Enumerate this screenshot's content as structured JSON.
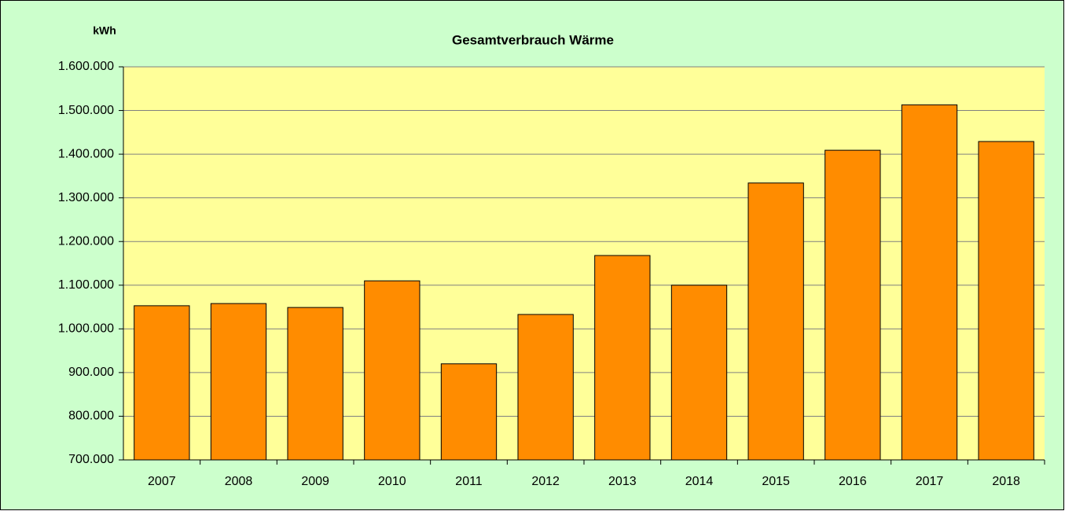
{
  "chart_data": {
    "type": "bar",
    "title": "Gesamtverbrauch Wärme",
    "y_axis_label": "kWh",
    "categories": [
      "2007",
      "2008",
      "2009",
      "2010",
      "2011",
      "2012",
      "2013",
      "2014",
      "2015",
      "2016",
      "2017",
      "2018"
    ],
    "values": [
      1053000,
      1058000,
      1049000,
      1110000,
      920000,
      1033000,
      1168000,
      1100000,
      1334000,
      1409000,
      1513000,
      1429000
    ],
    "color": "#ff8c00",
    "ylim": [
      700000,
      1600000
    ],
    "yticks": [
      {
        "value": 700000,
        "label": "700.000"
      },
      {
        "value": 800000,
        "label": "800.000"
      },
      {
        "value": 900000,
        "label": "900.000"
      },
      {
        "value": 1000000,
        "label": "1.000.000"
      },
      {
        "value": 1100000,
        "label": "1.100.000"
      },
      {
        "value": 1200000,
        "label": "1.200.000"
      },
      {
        "value": 1300000,
        "label": "1.300.000"
      },
      {
        "value": 1400000,
        "label": "1.400.000"
      },
      {
        "value": 1500000,
        "label": "1.500.000"
      },
      {
        "value": 1600000,
        "label": "1.600.000"
      }
    ],
    "grid": true
  }
}
